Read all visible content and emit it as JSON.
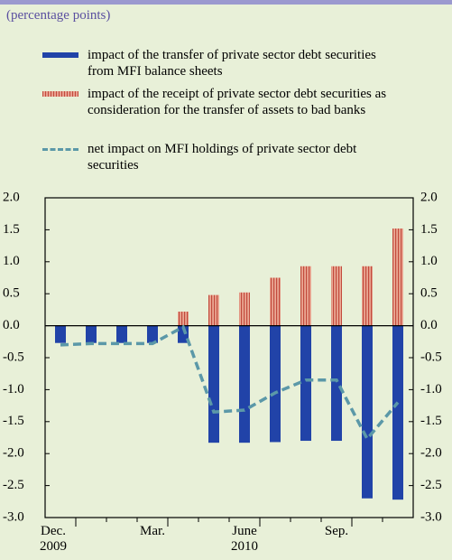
{
  "chart_data": {
    "type": "bar",
    "subtitle": "(percentage points)",
    "categories": [
      "Dec. 2009",
      null,
      null,
      "Mar.",
      null,
      null,
      "June 2010",
      null,
      null,
      "Sep.",
      null,
      null
    ],
    "series": [
      {
        "name": "impact of the transfer of private sector debt securities from MFI balance sheets",
        "color": "#2143a8",
        "kind": "bar",
        "values": [
          -0.27,
          -0.27,
          -0.27,
          -0.27,
          -0.27,
          -1.83,
          -1.83,
          -1.82,
          -1.8,
          -1.8,
          -2.7,
          -2.72
        ]
      },
      {
        "name": "impact of the receipt of private sector debt securities as consideration for the transfer of assets to bad banks",
        "color": "#e8a090",
        "kind": "bar",
        "values": [
          0,
          0,
          0,
          0,
          0.22,
          0.48,
          0.52,
          0.75,
          0.93,
          0.93,
          0.93,
          1.52
        ]
      },
      {
        "name": "net impact on MFI holdings of private sector debt securities",
        "color": "#5b98a8",
        "kind": "line",
        "values": [
          -0.3,
          -0.28,
          -0.28,
          -0.28,
          -0.02,
          -1.35,
          -1.32,
          -1.05,
          -0.85,
          -0.85,
          -1.77,
          -1.2
        ]
      }
    ],
    "ylim": [
      -3,
      2
    ],
    "yticks": [
      {
        "value": 2,
        "label": "2.0"
      },
      {
        "value": 1.5,
        "label": "1.5"
      },
      {
        "value": 1,
        "label": "1.0"
      },
      {
        "value": 0.5,
        "label": "0.5"
      },
      {
        "value": 0,
        "label": "0.0"
      },
      {
        "value": -0.5,
        "label": "-0.5"
      },
      {
        "value": -1,
        "label": "-1.0"
      },
      {
        "value": -1.5,
        "label": "-1.5"
      },
      {
        "value": -2,
        "label": "-2.0"
      },
      {
        "value": -2.5,
        "label": "-2.5"
      },
      {
        "value": -3,
        "label": "-3.0"
      }
    ],
    "grid": false
  }
}
